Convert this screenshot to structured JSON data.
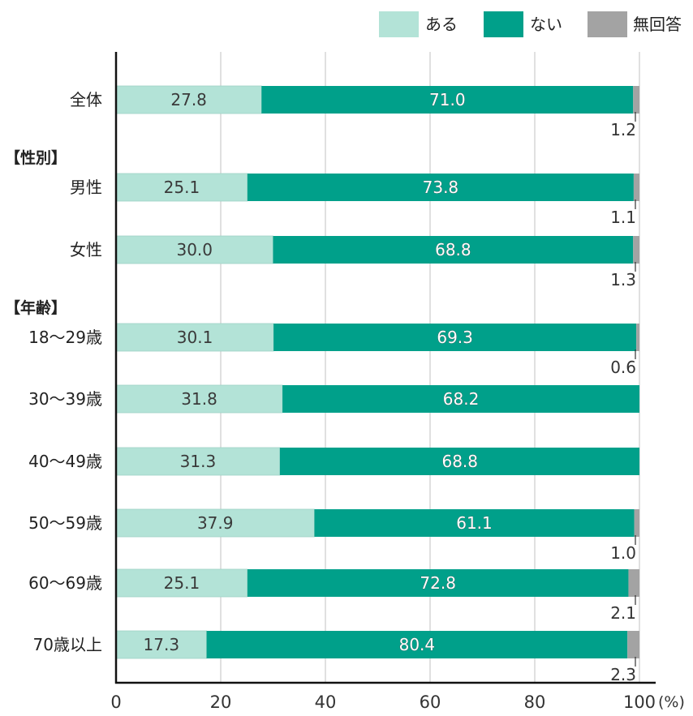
{
  "chart_data": {
    "type": "bar",
    "orientation": "horizontal",
    "stacked": true,
    "xlim": [
      0,
      100
    ],
    "xticks": [
      0,
      20,
      40,
      60,
      80,
      100
    ],
    "x_unit_label": "(%)",
    "grid": true,
    "legend_position": "top-right",
    "series": [
      {
        "name": "ある",
        "color": "#b3e3d7",
        "values": [
          27.8,
          25.1,
          30.0,
          30.1,
          31.8,
          31.3,
          37.9,
          25.1,
          17.3
        ]
      },
      {
        "name": "ない",
        "color": "#00a08a",
        "values": [
          71.0,
          73.8,
          68.8,
          69.3,
          68.2,
          68.8,
          61.1,
          72.8,
          80.4
        ]
      },
      {
        "name": "無回答",
        "color": "#a3a3a3",
        "values": [
          1.2,
          1.1,
          1.3,
          0.6,
          null,
          null,
          1.0,
          2.1,
          2.3
        ]
      }
    ],
    "categories": [
      "全体",
      "男性",
      "女性",
      "18〜29歳",
      "30〜39歳",
      "40〜49歳",
      "50〜59歳",
      "60〜69歳",
      "70歳以上"
    ],
    "value_labels": {
      "aru": [
        "27.8",
        "25.1",
        "30.0",
        "30.1",
        "31.8",
        "31.3",
        "37.9",
        "25.1",
        "17.3"
      ],
      "nai": [
        "71.0",
        "73.8",
        "68.8",
        "69.3",
        "68.2",
        "68.8",
        "61.1",
        "72.8",
        "80.4"
      ],
      "mukaito": [
        "1.2",
        "1.1",
        "1.3",
        "0.6",
        "",
        "",
        "1.0",
        "2.1",
        "2.3"
      ]
    },
    "group_headers": [
      "【性別】",
      "【年齢】"
    ]
  }
}
